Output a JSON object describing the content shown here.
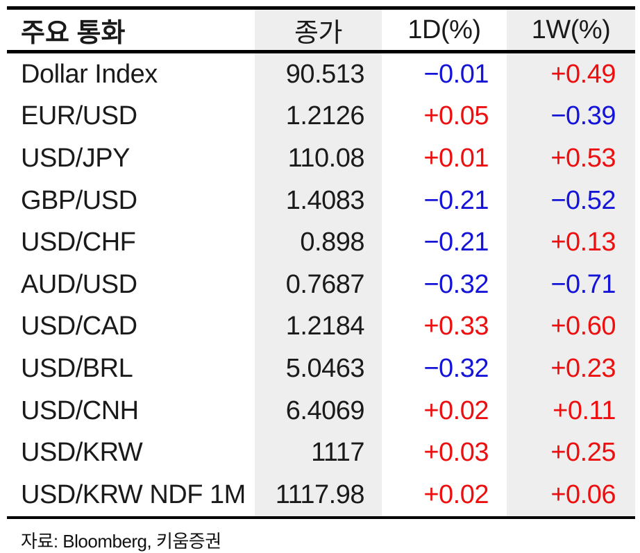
{
  "colors": {
    "positive_red": "#ed0f0f",
    "negative_blue": "#1414d9",
    "column_shade_gray": "#eeeeee",
    "rule_black": "#000000"
  },
  "table": {
    "headers": {
      "name": "주요 통화",
      "close": "종가",
      "d1": "1D(%)",
      "w1": "1W(%)"
    },
    "rows": [
      {
        "name": "Dollar Index",
        "close": "90.513",
        "d1": {
          "text": "−0.01",
          "dir": "down"
        },
        "w1": {
          "text": "+0.49",
          "dir": "up"
        }
      },
      {
        "name": "EUR/USD",
        "close": "1.2126",
        "d1": {
          "text": "+0.05",
          "dir": "up"
        },
        "w1": {
          "text": "−0.39",
          "dir": "down"
        }
      },
      {
        "name": "USD/JPY",
        "close": "110.08",
        "d1": {
          "text": "+0.01",
          "dir": "up"
        },
        "w1": {
          "text": "+0.53",
          "dir": "up"
        }
      },
      {
        "name": "GBP/USD",
        "close": "1.4083",
        "d1": {
          "text": "−0.21",
          "dir": "down"
        },
        "w1": {
          "text": "−0.52",
          "dir": "down"
        }
      },
      {
        "name": "USD/CHF",
        "close": "0.898",
        "d1": {
          "text": "−0.21",
          "dir": "down"
        },
        "w1": {
          "text": "+0.13",
          "dir": "up"
        }
      },
      {
        "name": "AUD/USD",
        "close": "0.7687",
        "d1": {
          "text": "−0.32",
          "dir": "down"
        },
        "w1": {
          "text": "−0.71",
          "dir": "down"
        }
      },
      {
        "name": "USD/CAD",
        "close": "1.2184",
        "d1": {
          "text": "+0.33",
          "dir": "up"
        },
        "w1": {
          "text": "+0.60",
          "dir": "up"
        }
      },
      {
        "name": "USD/BRL",
        "close": "5.0463",
        "d1": {
          "text": "−0.32",
          "dir": "down"
        },
        "w1": {
          "text": "+0.23",
          "dir": "up"
        }
      },
      {
        "name": "USD/CNH",
        "close": "6.4069",
        "d1": {
          "text": "+0.02",
          "dir": "up"
        },
        "w1": {
          "text": "+0.11",
          "dir": "up"
        }
      },
      {
        "name": "USD/KRW",
        "close": "1117",
        "d1": {
          "text": "+0.03",
          "dir": "up"
        },
        "w1": {
          "text": "+0.25",
          "dir": "up"
        }
      },
      {
        "name": "USD/KRW NDF 1M",
        "close": "1117.98",
        "d1": {
          "text": "+0.02",
          "dir": "up"
        },
        "w1": {
          "text": "+0.06",
          "dir": "up"
        }
      }
    ]
  },
  "footer": {
    "source": "자료: Bloomberg,  키움증권"
  },
  "chart_data": {
    "type": "table",
    "title": "주요 통화",
    "columns": [
      "주요 통화",
      "종가",
      "1D(%)",
      "1W(%)"
    ],
    "rows": [
      [
        "Dollar Index",
        90.513,
        -0.01,
        0.49
      ],
      [
        "EUR/USD",
        1.2126,
        0.05,
        -0.39
      ],
      [
        "USD/JPY",
        110.08,
        0.01,
        0.53
      ],
      [
        "GBP/USD",
        1.4083,
        -0.21,
        -0.52
      ],
      [
        "USD/CHF",
        0.898,
        -0.21,
        0.13
      ],
      [
        "AUD/USD",
        0.7687,
        -0.32,
        -0.71
      ],
      [
        "USD/CAD",
        1.2184,
        0.33,
        0.6
      ],
      [
        "USD/BRL",
        5.0463,
        -0.32,
        0.23
      ],
      [
        "USD/CNH",
        6.4069,
        0.02,
        0.11
      ],
      [
        "USD/KRW",
        1117,
        0.03,
        0.25
      ],
      [
        "USD/KRW NDF 1M",
        1117.98,
        0.02,
        0.06
      ]
    ],
    "notes": "Positive percent changes shown in red, negative in blue. 종가 and 1W(%) columns have light gray background. Source: 자료: Bloomberg, 키움증권"
  }
}
